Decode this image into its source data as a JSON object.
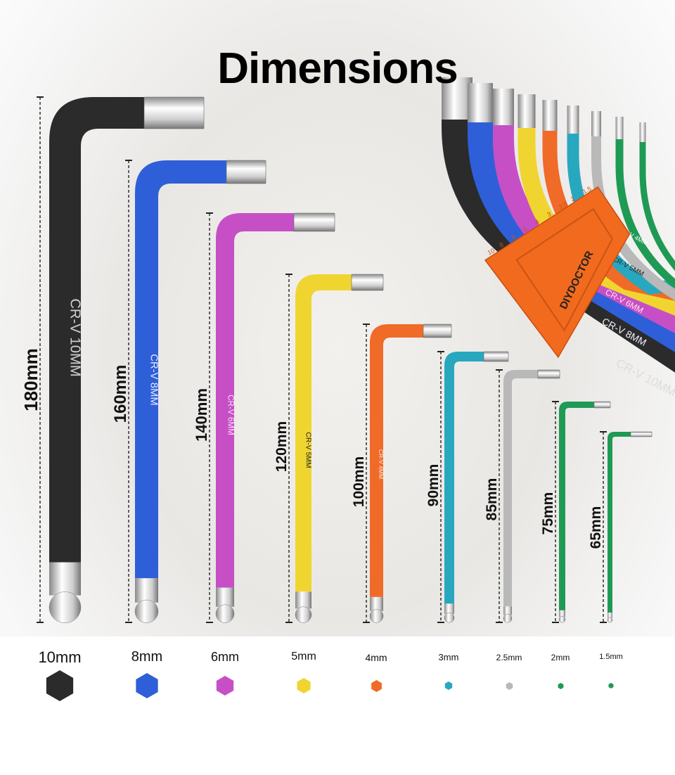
{
  "title": "Dimensions",
  "brand": "DIYDOCTOR",
  "holder_numbers": [
    "10",
    "8",
    "6",
    "5",
    "4",
    "3",
    "2.5",
    "2",
    "1.5"
  ],
  "wrenches": [
    {
      "size": "10mm",
      "length": "180mm",
      "stem_text": "CR-V 10MM",
      "color": "#2b2b2b",
      "text_color": "#cfcfcf"
    },
    {
      "size": "8mm",
      "length": "160mm",
      "stem_text": "CR-V 8MM",
      "color": "#2f5fd8",
      "text_color": "#e6ecff"
    },
    {
      "size": "6mm",
      "length": "140mm",
      "stem_text": "CR-V 6MM",
      "color": "#c64fc6",
      "text_color": "#f7dcf7"
    },
    {
      "size": "5mm",
      "length": "120mm",
      "stem_text": "CR-V 5MM",
      "color": "#f0d531",
      "text_color": "#222222"
    },
    {
      "size": "4mm",
      "length": "100mm",
      "stem_text": "CR-V 4MM",
      "color": "#f06a28",
      "text_color": "#fff1e6"
    },
    {
      "size": "3mm",
      "length": "90mm",
      "stem_text": "",
      "color": "#28a8bf",
      "text_color": "#ffffff"
    },
    {
      "size": "2.5mm",
      "length": "85mm",
      "stem_text": "",
      "color": "#b9b9b9",
      "text_color": "#ffffff"
    },
    {
      "size": "2mm",
      "length": "75mm",
      "stem_text": "",
      "color": "#1f9a55",
      "text_color": "#ffffff"
    },
    {
      "size": "1.5mm",
      "length": "65mm",
      "stem_text": "",
      "color": "#1f9a55",
      "text_color": "#ffffff"
    }
  ],
  "holder_color": "#f26a1e"
}
